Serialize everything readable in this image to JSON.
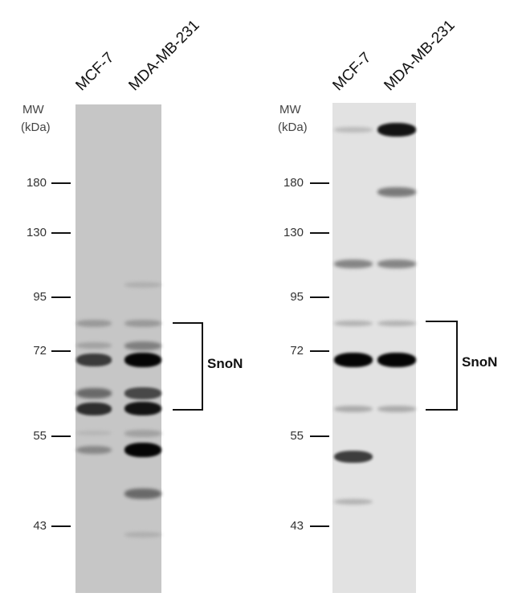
{
  "panels": [
    {
      "lanes": [
        "MCF-7",
        "MDA-MB-231"
      ],
      "mw_label": "MW",
      "unit_label": "(kDa)",
      "markers": [
        "180",
        "130",
        "95",
        "72",
        "55",
        "43"
      ],
      "target": "SnoN",
      "bands": [
        {
          "lane": 0,
          "kDa": 83,
          "intensity": 0.35
        },
        {
          "lane": 1,
          "kDa": 83,
          "intensity": 0.35
        },
        {
          "lane": 0,
          "kDa": 74,
          "intensity": 0.3
        },
        {
          "lane": 1,
          "kDa": 74,
          "intensity": 0.5
        },
        {
          "lane": 0,
          "kDa": 70,
          "intensity": 0.8
        },
        {
          "lane": 1,
          "kDa": 70,
          "intensity": 1.0
        },
        {
          "lane": 0,
          "kDa": 63,
          "intensity": 0.6
        },
        {
          "lane": 1,
          "kDa": 63,
          "intensity": 0.75
        },
        {
          "lane": 0,
          "kDa": 60,
          "intensity": 0.85
        },
        {
          "lane": 1,
          "kDa": 60,
          "intensity": 0.95
        },
        {
          "lane": 0,
          "kDa": 55.5,
          "intensity": 0.15
        },
        {
          "lane": 1,
          "kDa": 55.5,
          "intensity": 0.3
        },
        {
          "lane": 0,
          "kDa": 53,
          "intensity": 0.45
        },
        {
          "lane": 1,
          "kDa": 53,
          "intensity": 1.0
        },
        {
          "lane": 1,
          "kDa": 47,
          "intensity": 0.6
        },
        {
          "lane": 1,
          "kDa": 101,
          "intensity": 0.2
        },
        {
          "lane": 1,
          "kDa": 42,
          "intensity": 0.2
        }
      ]
    },
    {
      "lanes": [
        "MCF-7",
        "MDA-MB-231"
      ],
      "mw_label": "MW",
      "unit_label": "(kDa)",
      "markers": [
        "180",
        "130",
        "95",
        "72",
        "55",
        "43"
      ],
      "target": "SnoN",
      "bands": [
        {
          "lane": 0,
          "kDa": 255,
          "intensity": 0.2
        },
        {
          "lane": 1,
          "kDa": 255,
          "intensity": 0.95
        },
        {
          "lane": 1,
          "kDa": 170,
          "intensity": 0.55
        },
        {
          "lane": 0,
          "kDa": 112,
          "intensity": 0.5
        },
        {
          "lane": 1,
          "kDa": 112,
          "intensity": 0.5
        },
        {
          "lane": 0,
          "kDa": 83,
          "intensity": 0.25
        },
        {
          "lane": 1,
          "kDa": 83,
          "intensity": 0.25
        },
        {
          "lane": 0,
          "kDa": 70,
          "intensity": 1.0
        },
        {
          "lane": 1,
          "kDa": 70,
          "intensity": 1.0
        },
        {
          "lane": 0,
          "kDa": 60,
          "intensity": 0.3
        },
        {
          "lane": 1,
          "kDa": 60,
          "intensity": 0.3
        },
        {
          "lane": 0,
          "kDa": 52,
          "intensity": 0.8
        },
        {
          "lane": 0,
          "kDa": 46,
          "intensity": 0.25
        }
      ]
    }
  ]
}
